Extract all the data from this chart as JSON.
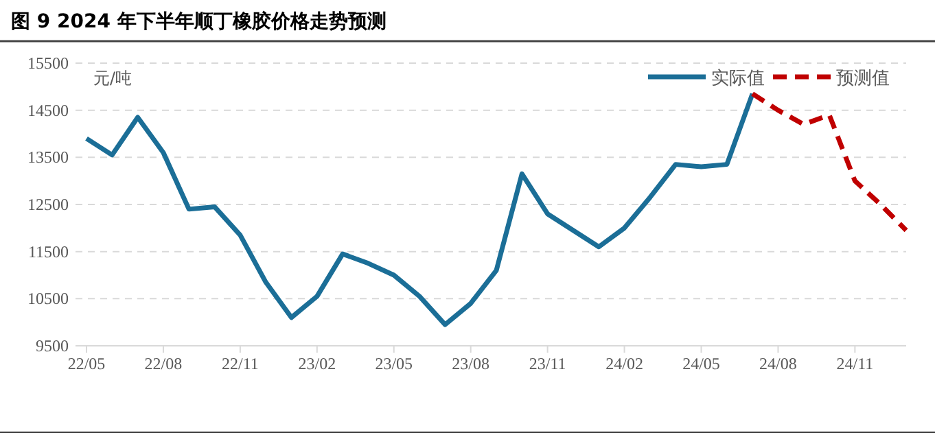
{
  "chart_data": {
    "type": "line",
    "title": "图 9  2024 年下半年顺丁橡胶价格走势预测",
    "ylabel": "元/吨",
    "categories": [
      "22/05",
      null,
      null,
      "22/08",
      null,
      null,
      "22/11",
      null,
      null,
      "23/02",
      null,
      null,
      "23/05",
      null,
      null,
      "23/08",
      null,
      null,
      "23/11",
      null,
      null,
      "24/02",
      null,
      null,
      "24/05",
      null,
      null,
      "24/08",
      null,
      null,
      "24/11",
      null,
      null
    ],
    "series": [
      {
        "name": "实际值",
        "color": "#1b6e97",
        "line_style": "solid",
        "values": [
          13900,
          13550,
          14350,
          13600,
          12400,
          12450,
          11850,
          10850,
          10100,
          10550,
          11450,
          11250,
          11000,
          10550,
          9950,
          10400,
          11100,
          13150,
          12300,
          11950,
          11600,
          12000,
          12650,
          13350,
          13300,
          13350,
          14850,
          null,
          null,
          null,
          null,
          null,
          null
        ]
      },
      {
        "name": "预测值",
        "color": "#c00000",
        "line_style": "dashed",
        "values": [
          null,
          null,
          null,
          null,
          null,
          null,
          null,
          null,
          null,
          null,
          null,
          null,
          null,
          null,
          null,
          null,
          null,
          null,
          null,
          null,
          null,
          null,
          null,
          null,
          null,
          null,
          14850,
          14500,
          14200,
          14400,
          13000,
          12500,
          11950
        ]
      }
    ],
    "ylim": [
      9500,
      15500
    ],
    "yticks": [
      9500,
      10500,
      11500,
      12500,
      13500,
      14500,
      15500
    ],
    "grid": "y",
    "legend": "top right",
    "marker": "none"
  }
}
